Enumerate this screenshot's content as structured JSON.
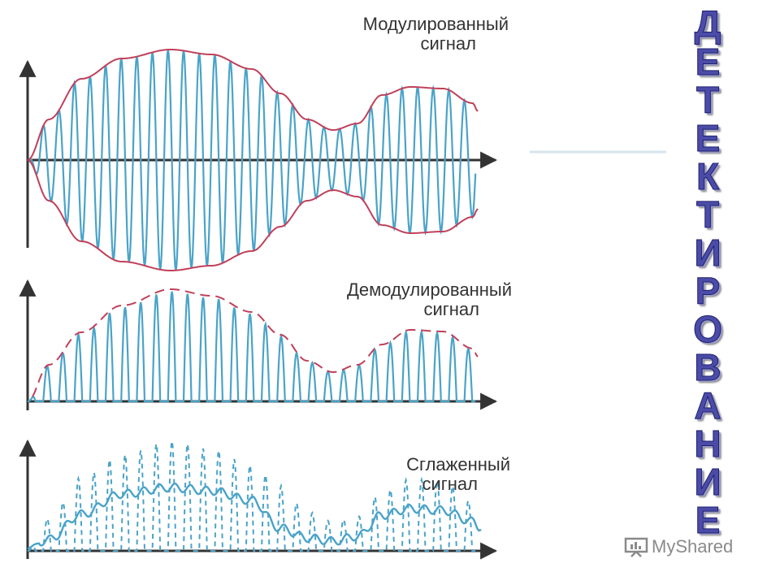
{
  "labels": {
    "modulated": [
      "Модулированный",
      "сигнал"
    ],
    "demodulated": [
      "Демодулированный",
      "сигнал"
    ],
    "smoothed": [
      "Сглаженный",
      "сигнал"
    ]
  },
  "vertical_title": "ДЕТЕКТИРОВАНИЕ",
  "watermark": "MyShared",
  "colors": {
    "wave": "#4aa3c8",
    "envelope": "#c0405a",
    "axis": "#333333",
    "title": "#4b4ca8"
  }
}
